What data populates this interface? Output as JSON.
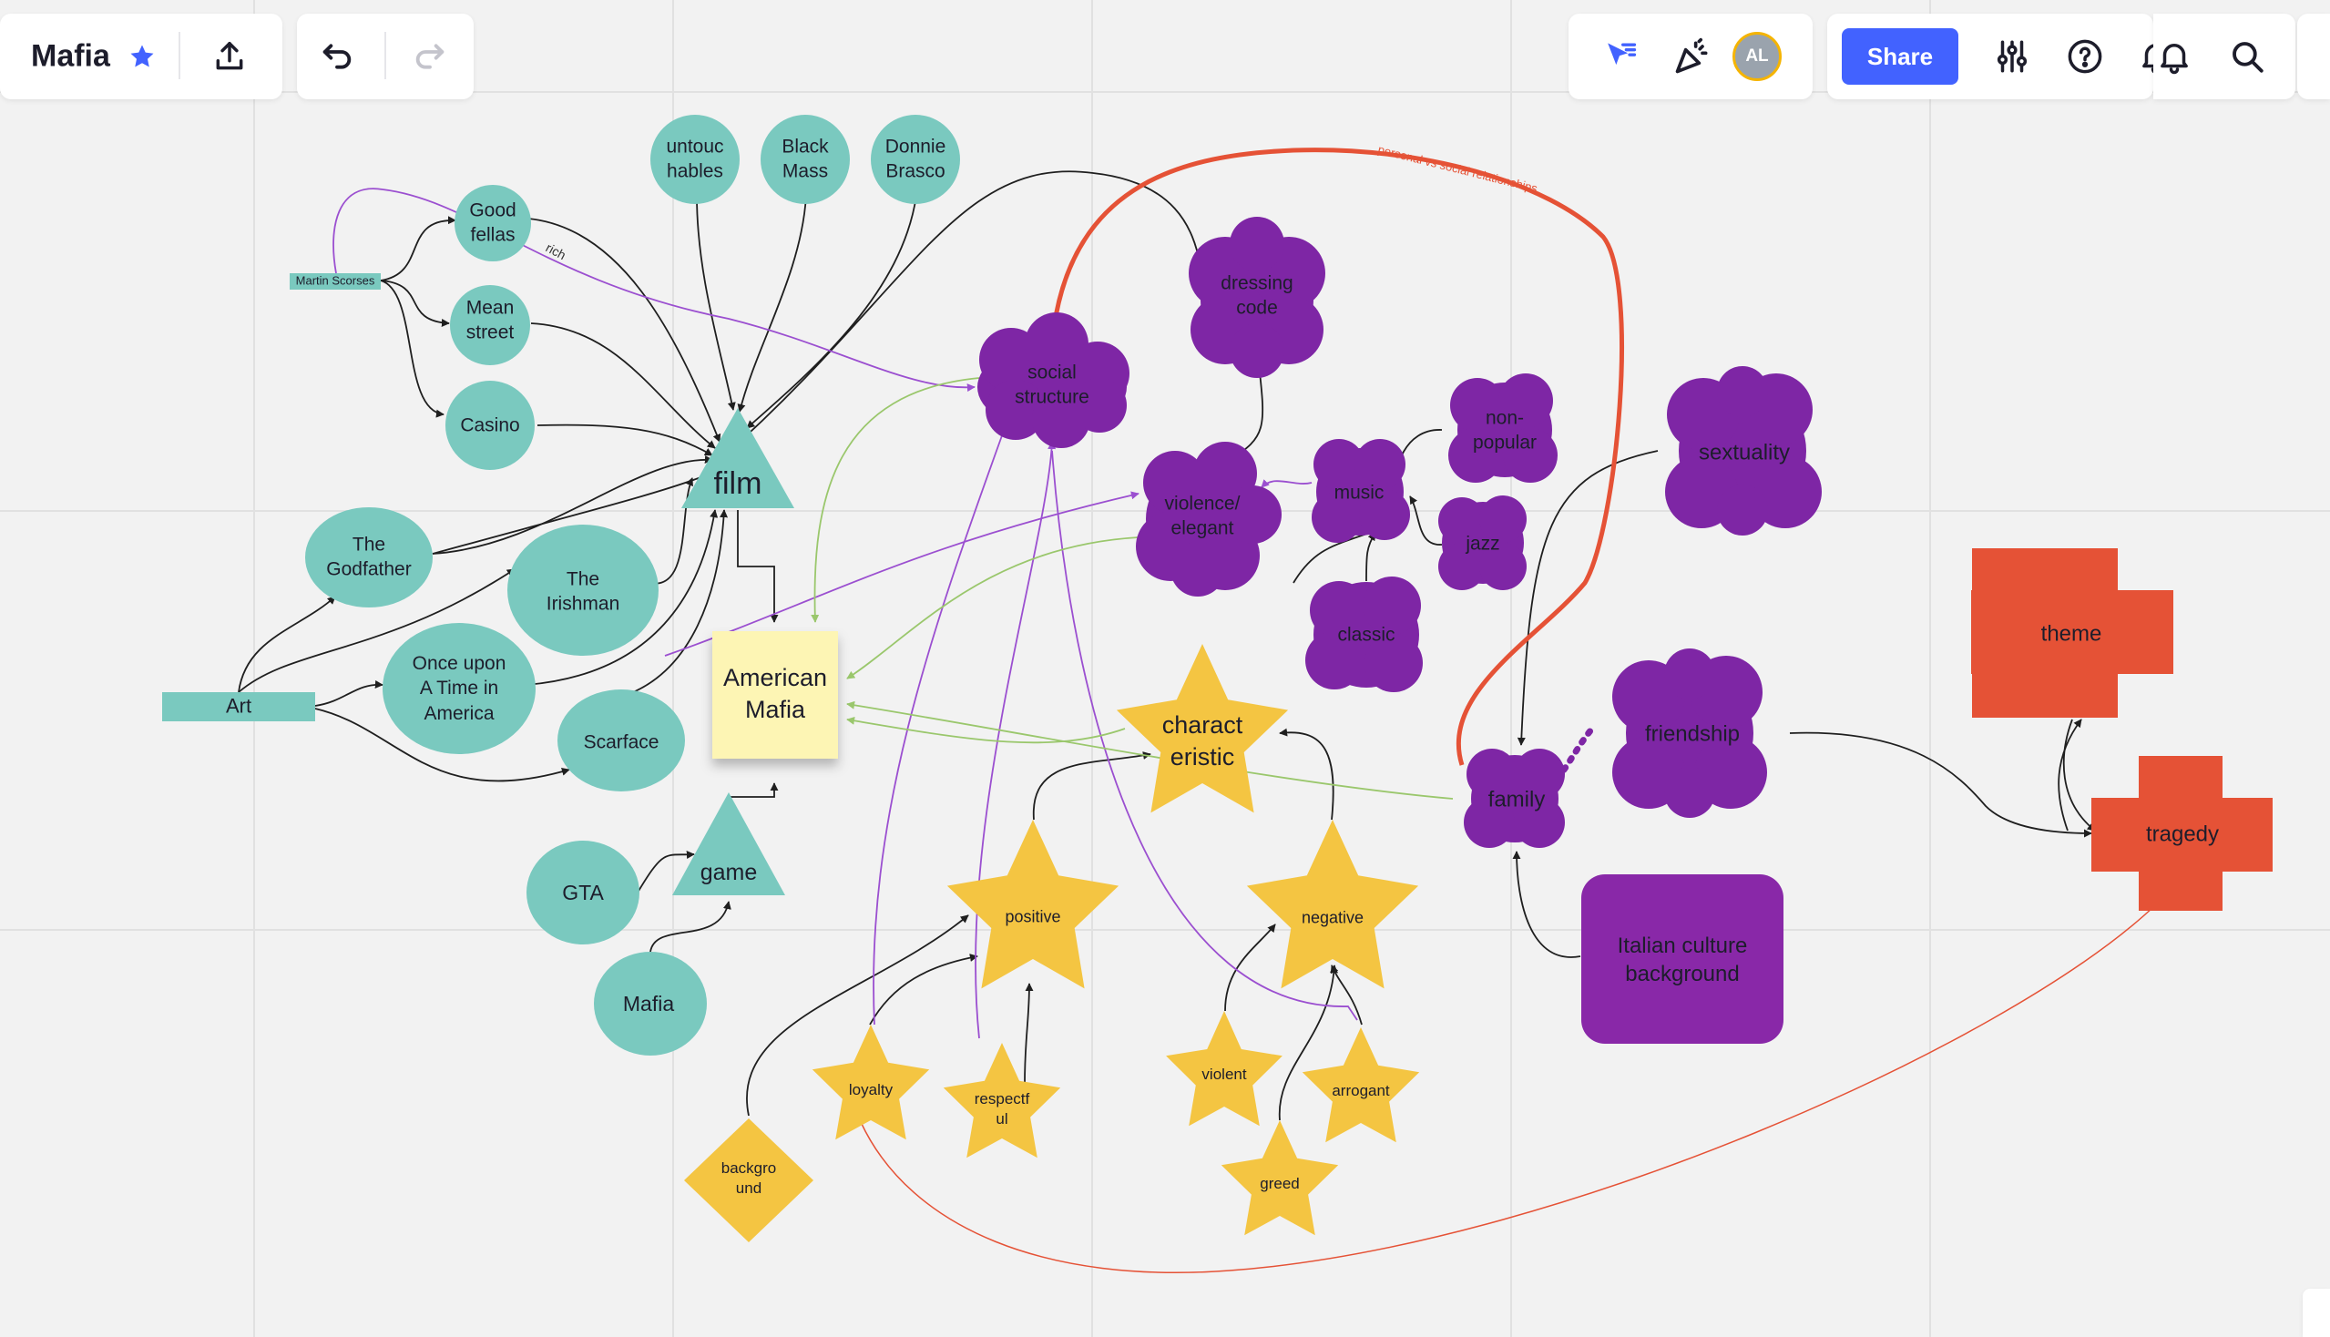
{
  "toolbar": {
    "board_title": "Mafia",
    "share_label": "Share",
    "avatar_initials": "AL",
    "icons": [
      "star-icon",
      "export-icon",
      "undo-icon",
      "redo-icon",
      "cursor-icon",
      "celebration-icon",
      "settings-sliders-icon",
      "help-icon",
      "bell-icon",
      "search-icon"
    ]
  },
  "colors": {
    "teal": "#7ac9bf",
    "purple": "#7e26a5",
    "yellow": "#f4c542",
    "orange": "#e55236",
    "sticky": "#fdf5b4",
    "italian_box": "#8928a8",
    "share": "#4262ff"
  },
  "nodes": {
    "american_mafia": "American\nMafia",
    "film": "film",
    "game": "game",
    "art": "Art",
    "martin_scorsese": "Martin Scorses",
    "goodfellas": "Good\nfellas",
    "mean_street": "Mean\nstreet",
    "casino": "Casino",
    "untouchables": "untouc\nhables",
    "black_mass": "Black\nMass",
    "donnie_brasco": "Donnie\nBrasco",
    "godfather": "The\nGodfather",
    "irishman": "The\nIrishman",
    "once_upon": "Once upon\nA Time in\nAmerica",
    "scarface": "Scarface",
    "gta": "GTA",
    "mafia_game": "Mafia",
    "social_structure": "social\nstructure",
    "dressing_code": "dressing\ncode",
    "violence_elegant": "violence/\nelegant",
    "music": "music",
    "non_popular": "non-\npopular",
    "jazz": "jazz",
    "classic": "classic",
    "sexuality": "sextuality",
    "friendship": "friendship",
    "family": "family",
    "italian_culture": "Italian culture\nbackground",
    "characteristic": "charact\neristic",
    "positive": "positive",
    "negative": "negative",
    "loyalty": "loyalty",
    "respectful": "respectf\nul",
    "background": "backgro\nund",
    "violent": "violent",
    "arrogant": "arrogant",
    "greed": "greed",
    "theme": "theme",
    "tragedy": "tragedy"
  },
  "connector_labels": {
    "rich": "rich",
    "personal_social": "personal vs social relationships"
  }
}
